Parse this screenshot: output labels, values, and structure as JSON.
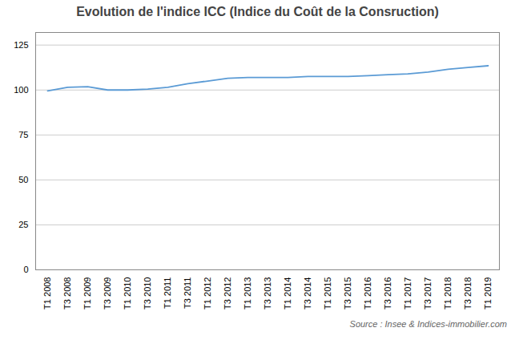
{
  "chart_data": {
    "type": "line",
    "title": "Evolution de l'indice ICC (Indice du Coût de la Consruction)",
    "annotation": "Source : Insee & Indices-immobilier.com",
    "categories": [
      "T1 2008",
      "T3 2008",
      "T1 2009",
      "T3 2009",
      "T1 2010",
      "T3 2010",
      "T1 2011",
      "T3 2011",
      "T1 2012",
      "T3 2012",
      "T1 2013",
      "T3 2013",
      "T1 2014",
      "T3 2014",
      "T1 2015",
      "T3 2015",
      "T1 2016",
      "T3 2016",
      "T1 2017",
      "T3 2017",
      "T1 2018",
      "T3 2018",
      "T1 2019"
    ],
    "values": [
      99.5,
      101.5,
      101.8,
      100.0,
      100.0,
      100.5,
      101.5,
      103.5,
      105.0,
      106.5,
      107.0,
      107.0,
      107.0,
      107.5,
      107.5,
      107.5,
      108.0,
      108.5,
      109.0,
      110.0,
      111.5,
      112.5,
      113.5
    ],
    "color": "#5b9bd5",
    "ylim": [
      0,
      132
    ],
    "yticks": [
      0,
      25,
      50,
      75,
      100,
      125
    ],
    "grid": true
  }
}
